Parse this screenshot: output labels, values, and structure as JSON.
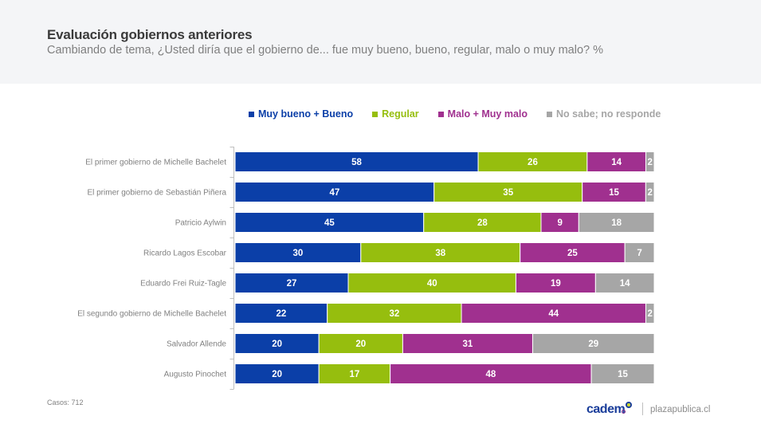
{
  "header": {
    "title": "Evaluación gobiernos anteriores",
    "subtitle": "Cambiando de tema, ¿Usted diría que el gobierno de... fue muy bueno, bueno, regular, malo o muy malo? %"
  },
  "footer": {
    "cases": "Casos: 712",
    "logo": "cadem",
    "site": "plazapublica.cl"
  },
  "chart_data": {
    "type": "bar",
    "orientation": "horizontal",
    "stacked": true,
    "title": "Evaluación gobiernos anteriores",
    "unit": "%",
    "legend_position": "top",
    "categories": [
      "El primer gobierno de Michelle Bachelet",
      "El primer gobierno de Sebastián Piñera",
      "Patricio Aylwin",
      "Ricardo Lagos Escobar",
      "Eduardo Frei Ruiz-Tagle",
      "El segundo gobierno de Michelle Bachelet",
      "Salvador Allende",
      "Augusto Pinochet"
    ],
    "series": [
      {
        "name": "Muy bueno + Bueno",
        "color": "#0b3fa8",
        "values": [
          58,
          47,
          45,
          30,
          27,
          22,
          20,
          20
        ]
      },
      {
        "name": "Regular",
        "color": "#96be0e",
        "values": [
          26,
          35,
          28,
          38,
          40,
          32,
          20,
          17
        ]
      },
      {
        "name": "Malo + Muy malo",
        "color": "#a0308f",
        "values": [
          14,
          15,
          9,
          25,
          19,
          44,
          31,
          48
        ]
      },
      {
        "name": "No sabe; no responde",
        "color": "#a6a6a6",
        "values": [
          2,
          2,
          18,
          7,
          14,
          2,
          29,
          15
        ]
      }
    ]
  }
}
